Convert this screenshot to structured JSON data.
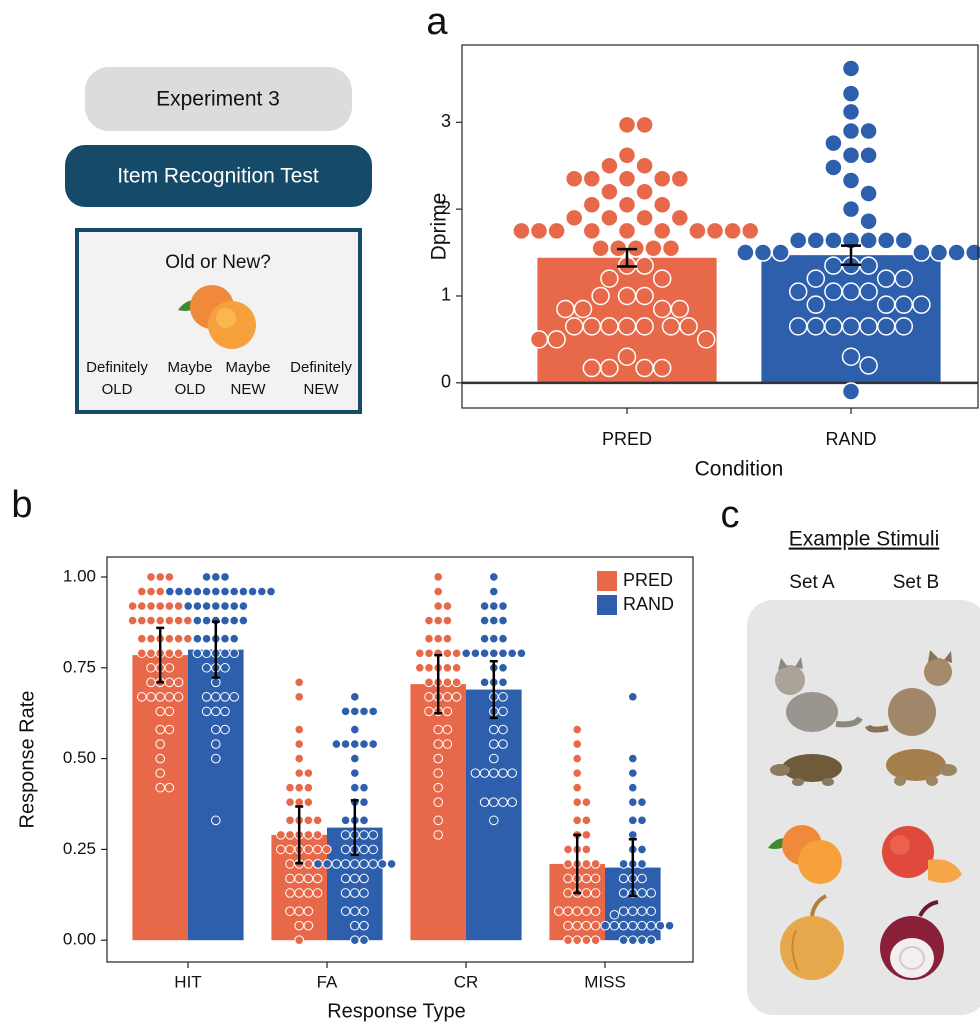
{
  "panel_labels": [
    "a",
    "b",
    "c"
  ],
  "task": {
    "experiment": "Experiment 3",
    "test": "Item Recognition Test",
    "question": "Old or New?",
    "options": [
      [
        "Definitely",
        "OLD"
      ],
      [
        "Maybe",
        "OLD"
      ],
      [
        "Maybe",
        "NEW"
      ],
      [
        "Definitely",
        "NEW"
      ]
    ]
  },
  "stimuli": {
    "title": "Example Stimuli",
    "sets": [
      "Set A",
      "Set B"
    ]
  },
  "chart_data": [
    {
      "type": "bar",
      "xlabel": "Condition",
      "ylabel": "Dprime",
      "categories": [
        "PRED",
        "RAND"
      ],
      "colors": [
        "#e8694a",
        "#2e5fac"
      ],
      "values": [
        1.44,
        1.47
      ],
      "errors": [
        0.1,
        0.11
      ],
      "points": [
        [
          2.97,
          2.97,
          2.62,
          2.5,
          2.5,
          2.35,
          2.35,
          2.35,
          2.35,
          2.35,
          2.2,
          2.2,
          2.05,
          2.05,
          2.05,
          1.9,
          1.9,
          1.9,
          1.9,
          1.75,
          1.75,
          1.75,
          1.75,
          1.75,
          1.75,
          1.75,
          1.75,
          1.75,
          1.75,
          1.55,
          1.55,
          1.55,
          1.55,
          1.55,
          1.35,
          1.35,
          1.2,
          1.2,
          1.0,
          1.0,
          1.0,
          0.85,
          0.85,
          0.85,
          0.85,
          0.65,
          0.65,
          0.65,
          0.65,
          0.65,
          0.65,
          0.65,
          0.5,
          0.5,
          0.5,
          0.3,
          0.17,
          0.17,
          0.17,
          0.17
        ],
        [
          3.62,
          3.33,
          3.12,
          2.9,
          2.9,
          2.76,
          2.62,
          2.62,
          2.48,
          2.33,
          2.18,
          2.0,
          1.86,
          1.64,
          1.64,
          1.64,
          1.64,
          1.64,
          1.64,
          1.64,
          1.5,
          1.5,
          1.5,
          1.5,
          1.5,
          1.5,
          1.5,
          1.35,
          1.35,
          1.35,
          1.2,
          1.2,
          1.2,
          1.05,
          1.05,
          1.05,
          1.05,
          0.9,
          0.9,
          0.9,
          0.9,
          0.65,
          0.65,
          0.65,
          0.65,
          0.65,
          0.65,
          0.65,
          0.3,
          0.2,
          -0.1
        ]
      ],
      "ylim": [
        -0.29,
        3.89
      ],
      "yticks": [
        0,
        1,
        2,
        3
      ],
      "zero_line": true
    },
    {
      "type": "grouped_bar",
      "xlabel": "Response Type",
      "ylabel": "Response Rate",
      "categories": [
        "HIT",
        "FA",
        "CR",
        "MISS"
      ],
      "series": [
        {
          "name": "PRED",
          "color": "#e8694a",
          "values": [
            0.785,
            0.29,
            0.705,
            0.21
          ],
          "errors": [
            0.075,
            0.078,
            0.08,
            0.08
          ],
          "points": [
            [
              1,
              1,
              1,
              0.96,
              0.96,
              0.96,
              0.96,
              0.96,
              0.92,
              0.92,
              0.92,
              0.92,
              0.92,
              0.92,
              0.92,
              0.88,
              0.88,
              0.88,
              0.88,
              0.88,
              0.88,
              0.88,
              0.83,
              0.83,
              0.83,
              0.83,
              0.83,
              0.83,
              0.79,
              0.79,
              0.79,
              0.79,
              0.79,
              0.75,
              0.75,
              0.75,
              0.71,
              0.71,
              0.71,
              0.71,
              0.67,
              0.67,
              0.67,
              0.67,
              0.67,
              0.63,
              0.63,
              0.58,
              0.58,
              0.54,
              0.5,
              0.46,
              0.42,
              0.42
            ],
            [
              0.71,
              0.67,
              0.58,
              0.54,
              0.5,
              0.46,
              0.46,
              0.42,
              0.42,
              0.42,
              0.38,
              0.38,
              0.38,
              0.33,
              0.33,
              0.33,
              0.33,
              0.29,
              0.29,
              0.29,
              0.29,
              0.29,
              0.25,
              0.25,
              0.25,
              0.25,
              0.25,
              0.25,
              0.21,
              0.21,
              0.21,
              0.21,
              0.17,
              0.17,
              0.17,
              0.17,
              0.13,
              0.13,
              0.13,
              0.13,
              0.08,
              0.08,
              0.08,
              0.04,
              0.04,
              0
            ],
            [
              1,
              0.96,
              0.92,
              0.92,
              0.88,
              0.88,
              0.88,
              0.83,
              0.83,
              0.83,
              0.79,
              0.79,
              0.79,
              0.79,
              0.79,
              0.79,
              0.75,
              0.75,
              0.75,
              0.75,
              0.75,
              0.71,
              0.71,
              0.71,
              0.71,
              0.67,
              0.67,
              0.67,
              0.67,
              0.63,
              0.63,
              0.63,
              0.58,
              0.58,
              0.54,
              0.54,
              0.5,
              0.46,
              0.42,
              0.38,
              0.33,
              0.29
            ],
            [
              0.58,
              0.54,
              0.5,
              0.46,
              0.42,
              0.38,
              0.38,
              0.33,
              0.33,
              0.29,
              0.29,
              0.25,
              0.25,
              0.25,
              0.21,
              0.21,
              0.21,
              0.21,
              0.17,
              0.17,
              0.17,
              0.17,
              0.13,
              0.13,
              0.13,
              0.13,
              0.08,
              0.08,
              0.08,
              0.08,
              0.08,
              0.04,
              0.04,
              0.04,
              0.04,
              0,
              0,
              0,
              0
            ]
          ]
        },
        {
          "name": "RAND",
          "color": "#2e5fac",
          "values": [
            0.8,
            0.31,
            0.69,
            0.2
          ],
          "errors": [
            0.077,
            0.075,
            0.078,
            0.078
          ],
          "points": [
            [
              1,
              1,
              1,
              0.96,
              0.96,
              0.96,
              0.96,
              0.96,
              0.96,
              0.96,
              0.96,
              0.96,
              0.96,
              0.96,
              0.96,
              0.92,
              0.92,
              0.92,
              0.92,
              0.92,
              0.92,
              0.92,
              0.88,
              0.88,
              0.88,
              0.88,
              0.88,
              0.88,
              0.83,
              0.83,
              0.83,
              0.83,
              0.83,
              0.79,
              0.79,
              0.79,
              0.79,
              0.79,
              0.75,
              0.75,
              0.75,
              0.71,
              0.67,
              0.67,
              0.67,
              0.67,
              0.63,
              0.63,
              0.63,
              0.58,
              0.58,
              0.54,
              0.5,
              0.33
            ],
            [
              0.67,
              0.63,
              0.63,
              0.63,
              0.63,
              0.58,
              0.54,
              0.54,
              0.54,
              0.54,
              0.54,
              0.5,
              0.46,
              0.42,
              0.42,
              0.38,
              0.38,
              0.33,
              0.33,
              0.33,
              0.29,
              0.29,
              0.29,
              0.29,
              0.25,
              0.25,
              0.25,
              0.25,
              0.21,
              0.21,
              0.21,
              0.21,
              0.21,
              0.21,
              0.21,
              0.21,
              0.21,
              0.17,
              0.17,
              0.17,
              0.13,
              0.13,
              0.13,
              0.08,
              0.08,
              0.08,
              0.04,
              0.04,
              0,
              0
            ],
            [
              1,
              0.96,
              0.92,
              0.92,
              0.92,
              0.88,
              0.88,
              0.88,
              0.83,
              0.83,
              0.83,
              0.79,
              0.79,
              0.79,
              0.79,
              0.79,
              0.79,
              0.79,
              0.75,
              0.75,
              0.71,
              0.71,
              0.71,
              0.67,
              0.67,
              0.63,
              0.63,
              0.58,
              0.58,
              0.54,
              0.54,
              0.5,
              0.46,
              0.46,
              0.46,
              0.46,
              0.46,
              0.38,
              0.38,
              0.38,
              0.38,
              0.33
            ],
            [
              0.67,
              0.5,
              0.46,
              0.42,
              0.38,
              0.38,
              0.33,
              0.33,
              0.29,
              0.25,
              0.25,
              0.21,
              0.21,
              0.21,
              0.17,
              0.17,
              0.17,
              0.13,
              0.13,
              0.13,
              0.13,
              0.08,
              0.08,
              0.08,
              0.08,
              0.04,
              0.04,
              0.04,
              0.04,
              0.04,
              0.04,
              0.04,
              0.04,
              0,
              0,
              0,
              0,
              0.07
            ]
          ]
        }
      ],
      "ylim": [
        -0.06,
        1.055
      ],
      "yticks": [
        {
          "value": 0,
          "label": "0.00"
        },
        {
          "value": 0.25,
          "label": "0.25"
        },
        {
          "value": 0.5,
          "label": "0.50"
        },
        {
          "value": 0.75,
          "label": "0.75"
        },
        {
          "value": 1,
          "label": "1.00"
        }
      ],
      "legend": "upper right"
    }
  ]
}
